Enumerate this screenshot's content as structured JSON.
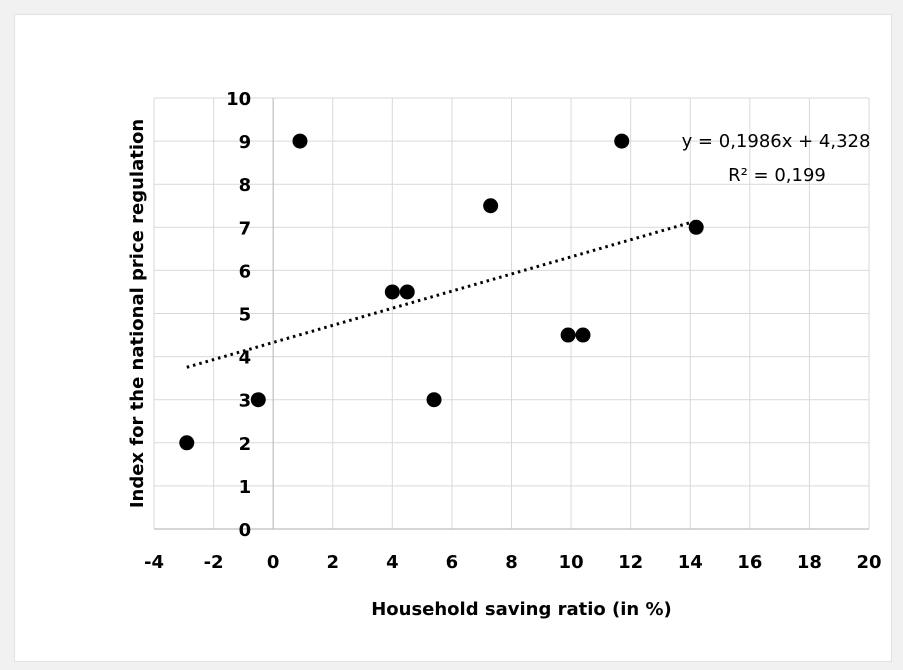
{
  "chart_data": {
    "type": "scatter",
    "title": "",
    "xlabel": "Household saving ratio (in %)",
    "ylabel": "Index for the national price regulation",
    "xlim": [
      -4,
      20
    ],
    "ylim": [
      0,
      10
    ],
    "x_ticks": [
      "-4",
      "-2",
      "0",
      "2",
      "4",
      "6",
      "8",
      "10",
      "12",
      "14",
      "16",
      "18",
      "20"
    ],
    "y_ticks": [
      "0",
      "1",
      "2",
      "3",
      "4",
      "5",
      "6",
      "7",
      "8",
      "9",
      "10"
    ],
    "grid": true,
    "legend": "none",
    "marker_color": "#000000",
    "points": [
      {
        "x": -2.9,
        "y": 2
      },
      {
        "x": -0.5,
        "y": 3
      },
      {
        "x": 0.9,
        "y": 9
      },
      {
        "x": 4.0,
        "y": 5.5
      },
      {
        "x": 4.5,
        "y": 5.5
      },
      {
        "x": 5.4,
        "y": 3
      },
      {
        "x": 7.3,
        "y": 7.5
      },
      {
        "x": 9.9,
        "y": 4.5
      },
      {
        "x": 10.4,
        "y": 4.5
      },
      {
        "x": 11.7,
        "y": 9
      },
      {
        "x": 14.2,
        "y": 7
      }
    ],
    "trendline": {
      "style": "dotted",
      "slope": 0.1986,
      "intercept": 4.328,
      "x_range": [
        -2.9,
        14.2
      ],
      "equation": "y = 0,1986x + 4,328",
      "r2_label": "R² = 0,199"
    }
  }
}
